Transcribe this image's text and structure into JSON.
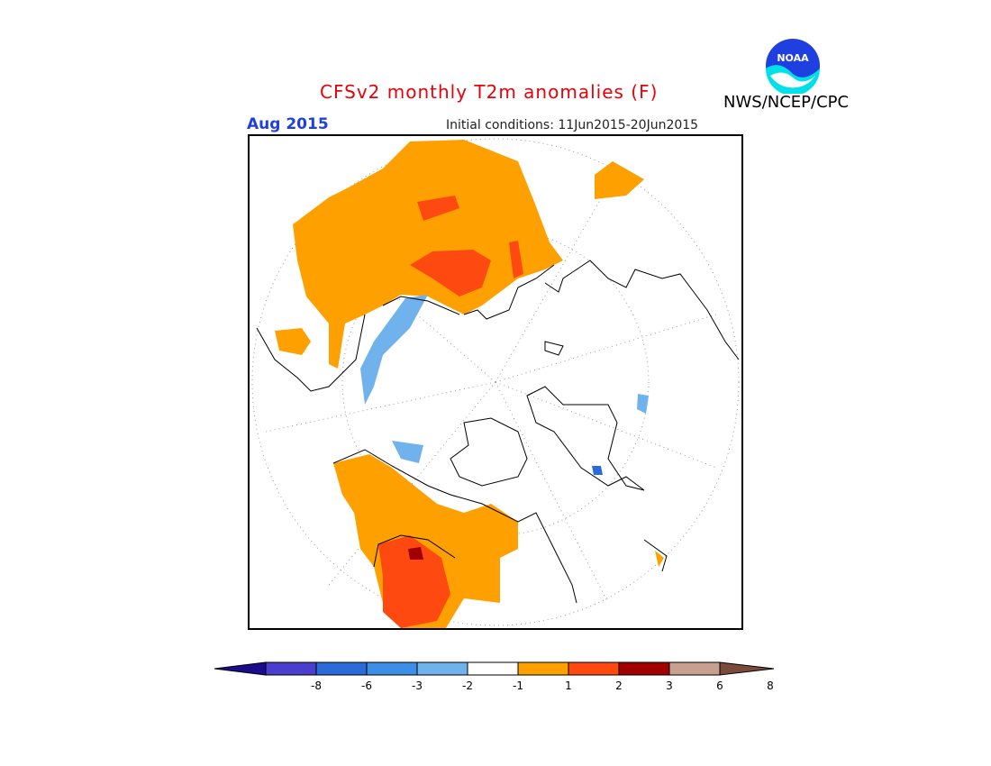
{
  "title": "CFSv2 monthly T2m anomalies (F)",
  "month": "Aug 2015",
  "initial_conditions": "Initial conditions: 11Jun2015-20Jun2015",
  "agency": "NWS/NCEP/CPC",
  "logo_text": "NOAA",
  "colorbar": {
    "ticks": [
      "-8",
      "-6",
      "-3",
      "-2",
      "-1",
      "1",
      "2",
      "3",
      "6",
      "8"
    ],
    "colors": [
      "#1a0c8c",
      "#4a3fcc",
      "#2a6bd8",
      "#3d8ee6",
      "#6fb2ec",
      "#ffffff",
      "#fea000",
      "#fe4a10",
      "#a00000",
      "#c8a090",
      "#7a4a3a"
    ]
  },
  "map": {
    "projection": "polar stereographic (north pole)",
    "grid": "dotted",
    "legend_colors": {
      "warm_1_2": "#fea000",
      "warm_2_3": "#fe4a10",
      "warm_3_6": "#a00000",
      "cool_1_2": "#6fb2ec",
      "cool_2_3": "#3d8ee6"
    }
  }
}
